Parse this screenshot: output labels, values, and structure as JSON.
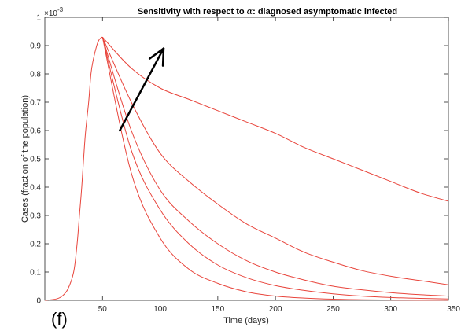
{
  "chart_data": {
    "type": "line",
    "title_prefix": "Sensitivity with respect to ",
    "title_symbol": "α",
    "title_suffix": ": diagnosed asymptomatic infected",
    "xlabel": "Time (days)",
    "ylabel": "Cases (fraction of the population)",
    "y_exponent_base": "×10",
    "y_exponent_power": "-3",
    "panel_label": "(f)",
    "xlim": [
      0,
      350
    ],
    "ylim": [
      0,
      1
    ],
    "x_ticks": [
      50,
      100,
      150,
      200,
      250,
      300,
      350
    ],
    "x_tick_labels": [
      "50",
      "100",
      "150",
      "200",
      "250",
      "300",
      "350"
    ],
    "y_ticks": [
      0,
      0.1,
      0.2,
      0.3,
      0.4,
      0.5,
      0.6,
      0.7,
      0.8,
      0.9,
      1
    ],
    "y_tick_labels": [
      "0",
      "0.1",
      "0.2",
      "0.3",
      "0.4",
      "0.5",
      "0.6",
      "0.7",
      "0.8",
      "0.9",
      "1"
    ],
    "grid": false,
    "line_color": "#e8453c",
    "arrow_color": "#000000",
    "arrow": {
      "from": [
        65,
        0.6
      ],
      "to": [
        103,
        0.89
      ]
    },
    "rise": {
      "x": [
        0,
        10,
        15,
        20,
        25,
        28,
        30,
        32,
        35,
        38,
        40,
        42,
        45,
        47,
        49,
        50
      ],
      "y": [
        0,
        0.005,
        0.015,
        0.04,
        0.1,
        0.2,
        0.3,
        0.4,
        0.58,
        0.7,
        0.8,
        0.85,
        0.9,
        0.92,
        0.928,
        0.93
      ]
    },
    "series": [
      {
        "x": [
          50,
          75,
          100,
          125,
          150,
          175,
          200,
          225,
          250,
          275,
          300,
          325,
          350
        ],
        "y": [
          0.93,
          0.82,
          0.75,
          0.71,
          0.67,
          0.63,
          0.59,
          0.54,
          0.5,
          0.46,
          0.42,
          0.38,
          0.35
        ]
      },
      {
        "x": [
          50,
          75,
          100,
          125,
          150,
          175,
          200,
          225,
          250,
          275,
          300,
          325,
          350
        ],
        "y": [
          0.93,
          0.7,
          0.52,
          0.42,
          0.34,
          0.27,
          0.22,
          0.17,
          0.135,
          0.105,
          0.085,
          0.07,
          0.055
        ]
      },
      {
        "x": [
          50,
          75,
          100,
          125,
          150,
          175,
          200,
          225,
          250,
          275,
          300,
          325,
          350
        ],
        "y": [
          0.93,
          0.6,
          0.39,
          0.28,
          0.2,
          0.14,
          0.1,
          0.072,
          0.05,
          0.037,
          0.027,
          0.02,
          0.015
        ]
      },
      {
        "x": [
          50,
          75,
          100,
          125,
          150,
          175,
          200,
          225,
          250,
          275,
          300,
          325,
          350
        ],
        "y": [
          0.93,
          0.53,
          0.32,
          0.2,
          0.125,
          0.08,
          0.052,
          0.035,
          0.023,
          0.015,
          0.01,
          0.007,
          0.005
        ]
      },
      {
        "x": [
          50,
          75,
          100,
          125,
          150,
          175,
          200,
          225,
          250,
          275,
          300,
          325,
          350
        ],
        "y": [
          0.93,
          0.45,
          0.22,
          0.11,
          0.06,
          0.03,
          0.015,
          0.008,
          0.004,
          0.002,
          0.001,
          0.0005,
          0.0003
        ]
      }
    ]
  }
}
